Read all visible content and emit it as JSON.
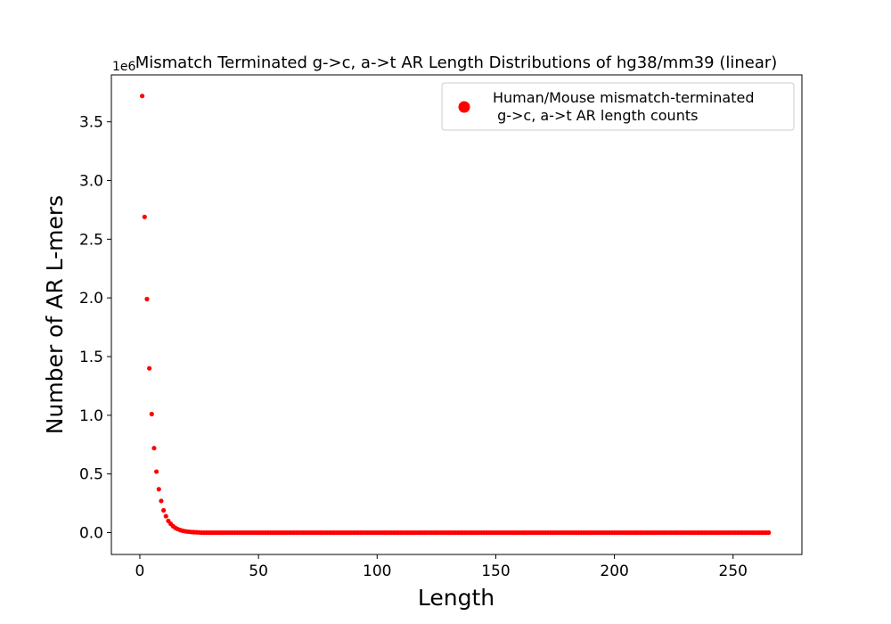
{
  "chart_data": {
    "type": "scatter",
    "title": "Mismatch Terminated g->c, a->t AR Length Distributions of hg38/mm39 (linear)",
    "xlabel": "Length",
    "ylabel": "Number of AR L-mers",
    "y_offset_label": "1e6",
    "scale": "linear",
    "xlim": [
      -12,
      279
    ],
    "ylim": [
      -0.186,
      3.9
    ],
    "xticks": [
      0,
      50,
      100,
      150,
      200,
      250
    ],
    "xtick_labels": [
      "0",
      "50",
      "100",
      "150",
      "200",
      "250"
    ],
    "yticks": [
      0.0,
      0.5,
      1.0,
      1.5,
      2.0,
      2.5,
      3.0,
      3.5
    ],
    "ytick_labels": [
      "0.0",
      "0.5",
      "1.0",
      "1.5",
      "2.0",
      "2.5",
      "3.0",
      "3.5"
    ],
    "grid": false,
    "legend_position": "upper right",
    "series": [
      {
        "name": "Human/Mouse mismatch-terminated\n g->c, a->t AR length counts",
        "color": "#ff0000",
        "marker": "circle",
        "x": [
          1,
          2,
          3,
          4,
          5,
          6,
          7,
          8,
          9,
          10,
          11,
          12,
          13,
          14,
          15,
          16,
          17,
          18,
          19,
          20,
          21,
          22,
          23,
          24,
          25
        ],
        "y": [
          3.72,
          2.69,
          1.99,
          1.4,
          1.01,
          0.72,
          0.52,
          0.37,
          0.27,
          0.19,
          0.14,
          0.1,
          0.075,
          0.055,
          0.04,
          0.03,
          0.022,
          0.016,
          0.012,
          0.009,
          0.007,
          0.005,
          0.004,
          0.003,
          0.002
        ],
        "tail": {
          "x_start": 26,
          "x_end": 265,
          "y": 0.0
        }
      }
    ]
  }
}
